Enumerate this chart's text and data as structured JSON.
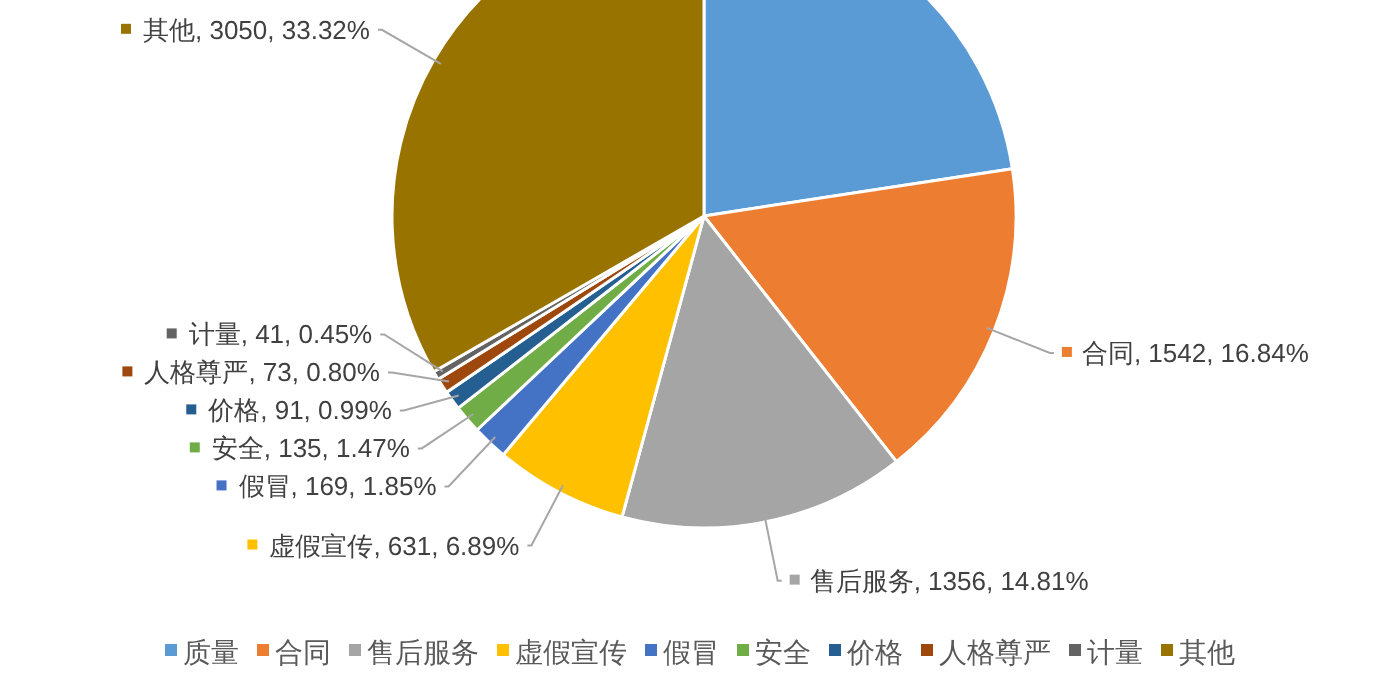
{
  "chart_data": {
    "type": "pie",
    "categories": [
      "质量",
      "合同",
      "售后服务",
      "虚假宣传",
      "假冒",
      "安全",
      "价格",
      "人格尊严",
      "计量",
      "其他"
    ],
    "values": [
      2067,
      1542,
      1356,
      631,
      169,
      135,
      91,
      73,
      41,
      3050
    ],
    "colors": [
      "#5b9bd5",
      "#ed7d31",
      "#a5a5a5",
      "#ffc000",
      "#4472c4",
      "#70ad47",
      "#255e91",
      "#9e480e",
      "#636363",
      "#997300"
    ],
    "value_labels": [
      null,
      "合同, 1542, 16.84%",
      "售后服务, 1356, 14.81%",
      "虚假宣传, 631, 6.89%",
      "假冒, 169, 1.85%",
      "安全, 135, 1.47%",
      "价格, 91, 0.99%",
      "人格尊严, 73, 0.80%",
      "计量, 41, 0.45%",
      "其他, 3050, 33.32%"
    ],
    "legend": "bottom"
  }
}
